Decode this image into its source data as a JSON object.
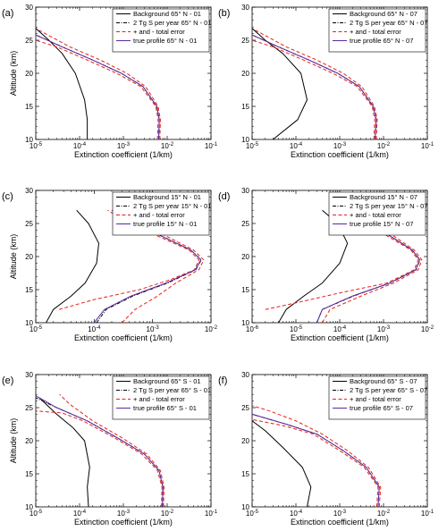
{
  "chart_data": [
    {
      "type": "line",
      "panel": "(a)",
      "xlabel": "Extinction coefficient (1/km)",
      "ylabel": "Altitude (km)",
      "xscale": "log",
      "xlim": [
        1e-05,
        0.1
      ],
      "ylim": [
        10,
        30
      ],
      "xticks": [
        "10-5",
        "10-4",
        "10-3",
        "10-2",
        "10-1"
      ],
      "yticks": [
        10,
        15,
        20,
        25,
        30
      ],
      "legend": "top-right",
      "series": [
        {
          "name": "Background 65° N - 01",
          "color": "#000000",
          "dash": "solid",
          "x": [
            0.00015,
            0.00015,
            0.00013,
            8e-05,
            4e-05,
            2e-05,
            1e-05
          ],
          "y": [
            10,
            13,
            16,
            20,
            23,
            25,
            26.8
          ]
        },
        {
          "name": "2 Tg S per year 65° N - 01",
          "color": "#000000",
          "dash": "dashdot",
          "x": [
            0.0064,
            0.0066,
            0.0058,
            0.0028,
            0.0009,
            0.0002,
            4e-05,
            1e-05
          ],
          "y": [
            10,
            13,
            15,
            18,
            20,
            22,
            24,
            25.8
          ]
        },
        {
          "name": "+ and - total error",
          "color": "#e8201a",
          "dash": "dashed",
          "x": [
            0.006,
            0.0062,
            0.0055,
            0.0025,
            0.0007,
            0.00015,
            3e-05,
            1e-05
          ],
          "y": [
            10,
            13,
            15,
            18,
            20,
            22,
            24,
            25
          ]
        },
        {
          "name": "",
          "color": "#e8201a",
          "dash": "dashed",
          "x": [
            0.0068,
            0.007,
            0.0062,
            0.0032,
            0.0012,
            0.0003,
            6e-05,
            1.2e-05
          ],
          "y": [
            10,
            13,
            15,
            18,
            20,
            22,
            24,
            26.5
          ]
        },
        {
          "name": "true profile 65° N - 01",
          "color": "#5b2a9e",
          "dash": "solid",
          "x": [
            0.0064,
            0.0066,
            0.0058,
            0.0028,
            0.0009,
            0.0002,
            4e-05,
            1e-05
          ],
          "y": [
            10,
            13,
            15,
            18,
            20,
            22,
            24,
            25.8
          ]
        }
      ]
    },
    {
      "type": "line",
      "panel": "(b)",
      "xlabel": "Extinction coefficient (1/km)",
      "ylabel": "",
      "xscale": "log",
      "xlim": [
        1e-05,
        0.1
      ],
      "ylim": [
        10,
        30
      ],
      "xticks": [
        "10-5",
        "10-4",
        "10-3",
        "10-2",
        "10-1"
      ],
      "yticks": [
        10,
        15,
        20,
        25,
        30
      ],
      "legend": "top-right",
      "series": [
        {
          "name": "Background 65° N - 07",
          "color": "#000000",
          "dash": "solid",
          "x": [
            3e-05,
            0.00011,
            0.00018,
            0.00013,
            5e-05,
            2e-05,
            1e-05
          ],
          "y": [
            10,
            13,
            16,
            20,
            23,
            25,
            26.8
          ]
        },
        {
          "name": "2 Tg S per year 65° N - 07",
          "color": "#000000",
          "dash": "dashdot",
          "x": [
            0.0064,
            0.0068,
            0.0058,
            0.0028,
            0.0009,
            0.0002,
            4e-05,
            1e-05
          ],
          "y": [
            10,
            13,
            15,
            18,
            20,
            22,
            24,
            25.8
          ]
        },
        {
          "name": "+ and - total error",
          "color": "#e8201a",
          "dash": "dashed",
          "x": [
            0.006,
            0.0063,
            0.0055,
            0.0025,
            0.0007,
            0.00015,
            3e-05,
            1e-05
          ],
          "y": [
            10,
            13,
            15,
            18,
            20,
            22,
            24,
            25
          ]
        },
        {
          "name": "",
          "color": "#e8201a",
          "dash": "dashed",
          "x": [
            0.0068,
            0.0072,
            0.0062,
            0.0032,
            0.0012,
            0.0003,
            6e-05,
            1.2e-05
          ],
          "y": [
            10,
            13,
            15,
            18,
            20,
            22,
            24,
            26.5
          ]
        },
        {
          "name": "true profile 65° N - 07",
          "color": "#5b2a9e",
          "dash": "solid",
          "x": [
            0.0064,
            0.0068,
            0.0058,
            0.0028,
            0.0009,
            0.0002,
            4e-05,
            1e-05
          ],
          "y": [
            10,
            13,
            15,
            18,
            20,
            22,
            24,
            25.8
          ]
        }
      ]
    },
    {
      "type": "line",
      "panel": "(c)",
      "xlabel": "Extinction coefficient (1/km)",
      "ylabel": "Altitude (km)",
      "xscale": "log",
      "xlim": [
        1e-05,
        0.01
      ],
      "ylim": [
        10,
        30
      ],
      "xticks": [
        "10-5",
        "10-4",
        "10-3",
        "10-2"
      ],
      "yticks": [
        10,
        15,
        20,
        25,
        30
      ],
      "legend": "top-right",
      "series": [
        {
          "name": "Background 15° N - 01",
          "color": "#000000",
          "dash": "solid",
          "x": [
            1.5e-05,
            2e-05,
            4e-05,
            7e-05,
            0.00011,
            0.00012,
            8e-05,
            5e-05
          ],
          "y": [
            10,
            12,
            14,
            16,
            19,
            22,
            25,
            27
          ]
        },
        {
          "name": "2 Tg S per year 15° N - 01",
          "color": "#000000",
          "dash": "dashdot",
          "x": [
            0.00011,
            0.00016,
            0.00045,
            0.0018,
            0.0055,
            0.0068,
            0.0045,
            0.0015,
            0.0005,
            0.0002
          ],
          "y": [
            10,
            12,
            14,
            16,
            18,
            19.5,
            21,
            23,
            25,
            27
          ]
        },
        {
          "name": "+ and - total error",
          "color": "#e8201a",
          "dash": "dashed",
          "x": [
            2.5e-05,
            0.0001,
            0.0006,
            0.002,
            0.0052,
            0.0062,
            0.0042,
            0.0013,
            0.0004,
            0.00017
          ],
          "y": [
            12,
            13.5,
            15,
            16.5,
            18,
            19.5,
            21,
            23,
            25,
            27
          ]
        },
        {
          "name": "",
          "color": "#e8201a",
          "dash": "dashed",
          "x": [
            0.0003,
            0.0005,
            0.0012,
            0.0025,
            0.0062,
            0.0075,
            0.005,
            0.0018,
            0.0006,
            0.00024
          ],
          "y": [
            10,
            12,
            14,
            16,
            18,
            19.5,
            21,
            23,
            25,
            27
          ]
        },
        {
          "name": "true profile 15° N - 01",
          "color": "#5b2a9e",
          "dash": "solid",
          "x": [
            0.0001,
            0.00015,
            0.00042,
            0.0017,
            0.0054,
            0.0067,
            0.0045,
            0.0015,
            0.0005,
            0.0002
          ],
          "y": [
            10,
            12,
            14,
            16,
            18,
            19.5,
            21,
            23,
            25,
            27
          ]
        }
      ]
    },
    {
      "type": "line",
      "panel": "(d)",
      "xlabel": "Extinction coefficient (1/km)",
      "ylabel": "",
      "xscale": "log",
      "xlim": [
        1e-06,
        0.01
      ],
      "ylim": [
        10,
        30
      ],
      "xticks": [
        "10-6",
        "10-5",
        "10-4",
        "10-3",
        "10-2"
      ],
      "yticks": [
        10,
        15,
        20,
        25,
        30
      ],
      "legend": "top-right",
      "series": [
        {
          "name": "Background 15° N - 07",
          "color": "#000000",
          "dash": "solid",
          "x": [
            4e-06,
            6e-06,
            1.5e-05,
            4e-05,
            0.0001,
            0.00015,
            9e-05,
            4e-05
          ],
          "y": [
            10,
            12,
            14,
            16,
            19,
            22,
            25,
            27
          ]
        },
        {
          "name": "2 Tg S per year 15° N - 07",
          "color": "#000000",
          "dash": "dashdot",
          "x": [
            3e-05,
            4e-05,
            0.0002,
            0.0014,
            0.0055,
            0.0068,
            0.0045,
            0.0015,
            0.0005,
            0.0002
          ],
          "y": [
            10,
            12,
            14,
            16,
            18,
            19.5,
            21,
            23,
            25,
            27
          ]
        },
        {
          "name": "+ and - total error",
          "color": "#e8201a",
          "dash": "dashed",
          "x": [
            2e-06,
            1e-05,
            0.0001,
            0.0012,
            0.005,
            0.0062,
            0.0042,
            0.0013,
            0.0004,
            0.00017
          ],
          "y": [
            12,
            13,
            14.5,
            16,
            18,
            19.5,
            21,
            23,
            25,
            27
          ]
        },
        {
          "name": "",
          "color": "#e8201a",
          "dash": "dashed",
          "x": [
            4e-05,
            6e-05,
            0.0003,
            0.0017,
            0.0062,
            0.0075,
            0.005,
            0.0018,
            0.0006,
            0.00024
          ],
          "y": [
            10,
            12,
            14,
            16,
            18,
            19.5,
            21,
            23,
            25,
            27
          ]
        },
        {
          "name": "true profile 15° N - 07",
          "color": "#5b2a9e",
          "dash": "solid",
          "x": [
            3e-05,
            4e-05,
            0.00019,
            0.0014,
            0.0054,
            0.0067,
            0.0045,
            0.0015,
            0.0005,
            0.0002
          ],
          "y": [
            10,
            12,
            14,
            16,
            18,
            19.5,
            21,
            23,
            25,
            27
          ]
        }
      ]
    },
    {
      "type": "line",
      "panel": "(e)",
      "xlabel": "Extinction coefficient (1/km)",
      "ylabel": "Altitude (km)",
      "xscale": "log",
      "xlim": [
        1e-05,
        0.1
      ],
      "ylim": [
        10,
        30
      ],
      "xticks": [
        "10-5",
        "10-4",
        "10-3",
        "10-2",
        "10-1"
      ],
      "yticks": [
        10,
        15,
        20,
        25,
        30
      ],
      "legend": "top-right",
      "series": [
        {
          "name": "Background 65° S - 01",
          "color": "#000000",
          "dash": "solid",
          "x": [
            0.00016,
            0.00015,
            0.00017,
            0.00013,
            7e-05,
            3e-05,
            1.2e-05
          ],
          "y": [
            10,
            13,
            16,
            20,
            22,
            24,
            26.5
          ]
        },
        {
          "name": "2 Tg S per year 65° S - 01",
          "color": "#000000",
          "dash": "dashdot",
          "x": [
            0.0078,
            0.008,
            0.0065,
            0.003,
            0.0007,
            0.00015,
            3e-05,
            1e-05
          ],
          "y": [
            10,
            13,
            15.5,
            18,
            20.5,
            23,
            25,
            26.5
          ]
        },
        {
          "name": "+ and - total error",
          "color": "#e8201a",
          "dash": "dashed",
          "x": [
            0.0074,
            0.0076,
            0.006,
            0.0026,
            0.0006,
            0.00012,
            4e-05,
            1e-05
          ],
          "y": [
            10,
            13,
            15.5,
            18,
            20.5,
            23,
            24.2,
            24.5
          ]
        },
        {
          "name": "",
          "color": "#e8201a",
          "dash": "dashed",
          "x": [
            0.0082,
            0.0085,
            0.007,
            0.0034,
            0.0009,
            0.0002,
            6e-05,
            3.5e-05
          ],
          "y": [
            10,
            13,
            15.5,
            18,
            20.5,
            23,
            25.5,
            27
          ]
        },
        {
          "name": "true profile 65° S - 01",
          "color": "#5b2a9e",
          "dash": "solid",
          "x": [
            0.0078,
            0.008,
            0.0065,
            0.003,
            0.0007,
            0.00015,
            3e-05,
            1e-05
          ],
          "y": [
            10,
            13,
            15.5,
            18,
            20.5,
            23,
            25,
            26.8
          ]
        }
      ]
    },
    {
      "type": "line",
      "panel": "(f)",
      "xlabel": "Extinction coefficient (1/km)",
      "ylabel": "",
      "xscale": "log",
      "xlim": [
        1e-05,
        0.1
      ],
      "ylim": [
        10,
        30
      ],
      "xticks": [
        "10-5",
        "10-4",
        "10-3",
        "10-2",
        "10-1"
      ],
      "yticks": [
        10,
        15,
        20,
        25,
        30
      ],
      "legend": "top-right",
      "series": [
        {
          "name": "Background 65° S - 07",
          "color": "#000000",
          "dash": "solid",
          "x": [
            0.00018,
            0.00022,
            0.00014,
            5e-05,
            2e-05,
            1e-05
          ],
          "y": [
            10,
            13,
            16,
            19,
            21.5,
            23
          ]
        },
        {
          "name": "2 Tg S per year 65° S - 07",
          "color": "#000000",
          "dash": "dashdot",
          "x": [
            0.0075,
            0.008,
            0.004,
            0.0012,
            0.0003,
            6e-05,
            1e-05
          ],
          "y": [
            10,
            13,
            16,
            18.5,
            21,
            22.5,
            24
          ]
        },
        {
          "name": "+ and - total error",
          "color": "#e8201a",
          "dash": "dashed",
          "x": [
            0.007,
            0.0075,
            0.0036,
            0.001,
            0.00025,
            5e-05,
            1e-05
          ],
          "y": [
            10,
            13,
            16,
            18.5,
            21,
            22.3,
            23.2
          ]
        },
        {
          "name": "",
          "color": "#e8201a",
          "dash": "dashed",
          "x": [
            0.008,
            0.0086,
            0.0045,
            0.0015,
            0.0004,
            0.0001,
            2.5e-05,
            1e-05
          ],
          "y": [
            10,
            13,
            16,
            18.5,
            21,
            23,
            24.5,
            25.3
          ]
        },
        {
          "name": "true profile 65° S - 07",
          "color": "#5b2a9e",
          "dash": "solid",
          "x": [
            0.0075,
            0.008,
            0.004,
            0.0012,
            0.0003,
            6e-05,
            1e-05
          ],
          "y": [
            10,
            13,
            16,
            18.5,
            21,
            22.5,
            24
          ]
        }
      ]
    }
  ]
}
